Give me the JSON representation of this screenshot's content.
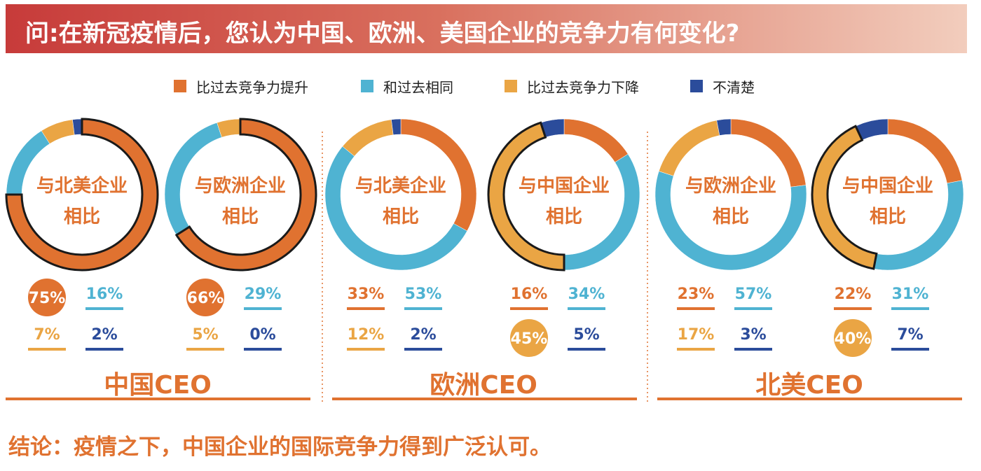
{
  "title": "问:在新冠疫情后，您认为中国、欧洲、美国企业的竞争力有何变化?",
  "conclusion": "结论：疫情之下，中国企业的国际竞争力得到广泛认可。",
  "colors": {
    "up": "#e07230",
    "same": "#4fb3d2",
    "down": "#eaa544",
    "unknown": "#2b4c9b"
  },
  "chart_data": {
    "type": "pie",
    "legend": [
      "比过去竞争力提升",
      "和过去相同",
      "比过去竞争力下降",
      "不清楚"
    ],
    "groups": [
      {
        "name": "中国CEO",
        "charts": [
          {
            "label_lines": [
              "与北美企业",
              "相比"
            ],
            "values": [
              75,
              16,
              7,
              2
            ],
            "labels": [
              "75%",
              "16%",
              "7%",
              "2%"
            ],
            "highlight": 0
          },
          {
            "label_lines": [
              "与欧洲企业",
              "相比"
            ],
            "values": [
              66,
              29,
              5,
              0
            ],
            "labels": [
              "66%",
              "29%",
              "5%",
              "0%"
            ],
            "highlight": 0
          }
        ]
      },
      {
        "name": "欧洲CEO",
        "charts": [
          {
            "label_lines": [
              "与北美企业",
              "相比"
            ],
            "values": [
              33,
              53,
              12,
              2
            ],
            "labels": [
              "33%",
              "53%",
              "12%",
              "2%"
            ],
            "highlight": null
          },
          {
            "label_lines": [
              "与中国企业",
              "相比"
            ],
            "values": [
              16,
              34,
              45,
              5
            ],
            "labels": [
              "16%",
              "34%",
              "45%",
              "5%"
            ],
            "highlight": 2
          }
        ]
      },
      {
        "name": "北美CEO",
        "charts": [
          {
            "label_lines": [
              "与欧洲企业",
              "相比"
            ],
            "values": [
              23,
              57,
              17,
              3
            ],
            "labels": [
              "23%",
              "57%",
              "17%",
              "3%"
            ],
            "highlight": null
          },
          {
            "label_lines": [
              "与中国企业",
              "相比"
            ],
            "values": [
              22,
              31,
              40,
              7
            ],
            "labels": [
              "22%",
              "31%",
              "40%",
              "7%"
            ],
            "highlight": 2
          }
        ]
      }
    ]
  }
}
